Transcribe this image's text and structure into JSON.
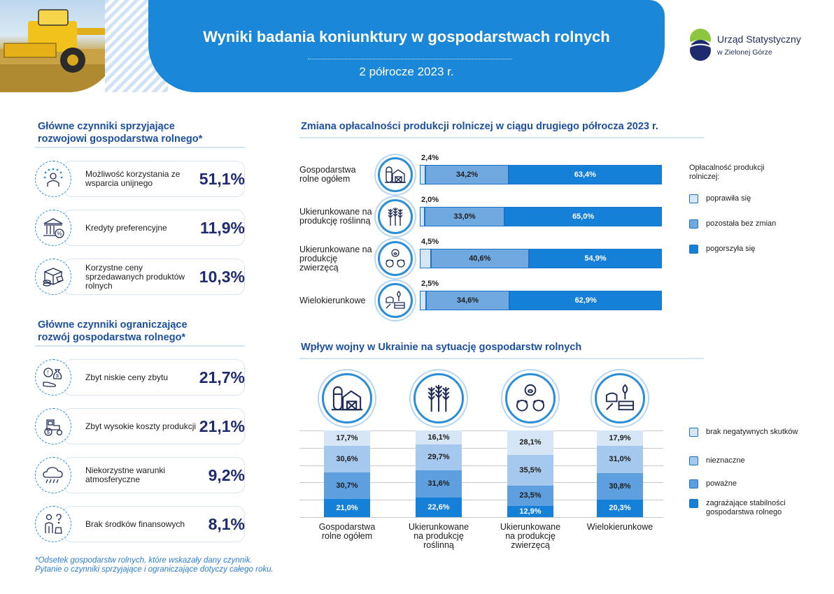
{
  "header": {
    "title": "Wyniki badania koniunktury w gospodarstwach rolnych",
    "subtitle": "2 półrocze 2023 r."
  },
  "logo": {
    "line1": "Urząd Statystyczny",
    "line2": "w Zielonej Górze"
  },
  "colors": {
    "header_blue": "#1b87d8",
    "title_blue": "#1b4f9f",
    "percent_navy": "#1e2b6f",
    "c1_improved": "#d6e6f6",
    "c1_unchanged": "#6fa9e0",
    "c1_worse": "#1580d8",
    "c2_none": "#d6e6f6",
    "c2_minor": "#a4c8ee",
    "c2_serious": "#5e9fe0",
    "c2_threat": "#1580d8"
  },
  "favorable": {
    "title_line1": "Główne czynniki sprzyjające",
    "title_line2": "rozwojowi gospodarstwa rolnego*",
    "items": [
      {
        "label": "Możliwość korzystania ze wsparcia unijnego",
        "value": "51,1%",
        "icon": "eu-stars-farmer-icon"
      },
      {
        "label": "Kredyty preferencyjne",
        "value": "11,9%",
        "icon": "bank-percent-icon"
      },
      {
        "label": "Korzystne ceny sprzedawanych produktów rolnych",
        "value": "10,3%",
        "icon": "box-coins-price-tag-icon"
      }
    ]
  },
  "limiting": {
    "title_line1": "Główne czynniki ograniczające",
    "title_line2": "rozwój gospodarstwa rolnego*",
    "items": [
      {
        "label": "Zbyt niskie ceny zbytu",
        "value": "21,7%",
        "icon": "hand-money-bag-icon"
      },
      {
        "label": "Zbyt wysokie koszty produkcji",
        "value": "21,1%",
        "icon": "tractor-dollar-icon"
      },
      {
        "label": "Niekorzystne warunki atmosferyczne",
        "value": "9,2%",
        "icon": "storm-cloud-icon"
      },
      {
        "label": "Brak środków finansowych",
        "value": "8,1%",
        "icon": "person-question-money-icon"
      }
    ]
  },
  "chart1": {
    "title": "Zmiana opłacalności produkcji rolniczej w ciągu drugiego półrocza 2023 r.",
    "legend_title": "Opłacalność produkcji rolniczej:"
  },
  "chart2": {
    "title": "Wpływ wojny w Ukrainie na sytuację gospodarstw rolnych"
  },
  "chart_data": [
    {
      "type": "bar",
      "orientation": "horizontal",
      "stacked": true,
      "title": "Zmiana opłacalności produkcji rolniczej w ciągu drugiego półrocza 2023 r.",
      "categories": [
        "Gospodarstwa rolne ogółem",
        "Ukierunkowane na produkcję roślinną",
        "Ukierunkowane na produkcję zwierzęcą",
        "Wielokierunkowe"
      ],
      "series": [
        {
          "name": "poprawiła się",
          "values": [
            2.4,
            2.0,
            4.5,
            2.5
          ],
          "labels": [
            "2,4%",
            "2,0%",
            "4,5%",
            "2,5%"
          ]
        },
        {
          "name": "pozostała bez zmian",
          "values": [
            34.2,
            33.0,
            40.6,
            34.6
          ],
          "labels": [
            "34,2%",
            "33,0%",
            "40,6%",
            "34,6%"
          ]
        },
        {
          "name": "pogorszyła się",
          "values": [
            63.4,
            65.0,
            54.9,
            62.9
          ],
          "labels": [
            "63,4%",
            "65,0%",
            "54,9%",
            "62,9%"
          ]
        }
      ],
      "xlim": [
        0,
        100
      ],
      "legend": "right"
    },
    {
      "type": "bar",
      "orientation": "vertical",
      "stacked": true,
      "title": "Wpływ wojny w Ukrainie na sytuację gospodarstw rolnych",
      "categories": [
        "Gospodarstwa rolne ogółem",
        "Ukierunkowane na produkcję roślinną",
        "Ukierunkowane na produkcję zwierzęcą",
        "Wielokierunkowe"
      ],
      "series": [
        {
          "name": "zagrażające stabilności gospodarstwa rolnego",
          "values": [
            21.0,
            22.6,
            12.9,
            20.3
          ],
          "labels": [
            "21,0%",
            "22,6%",
            "12,9%",
            "20,3%"
          ]
        },
        {
          "name": "poważne",
          "values": [
            30.7,
            31.6,
            23.5,
            30.8
          ],
          "labels": [
            "30,7%",
            "31,6%",
            "23,5%",
            "30,8%"
          ]
        },
        {
          "name": "nieznaczne",
          "values": [
            30.6,
            29.7,
            35.5,
            31.0
          ],
          "labels": [
            "30,6%",
            "29,7%",
            "35,5%",
            "31,0%"
          ]
        },
        {
          "name": "brak negatywnych skutków",
          "values": [
            17.7,
            16.1,
            28.1,
            17.9
          ],
          "labels": [
            "17,7%",
            "16,1%",
            "28,1%",
            "17,9%"
          ]
        }
      ],
      "ylim": [
        0,
        100
      ],
      "grid": true,
      "legend": "right"
    }
  ],
  "footnote": {
    "line1": "*Odsetek gospodarstw rolnych, które wskazały dany czynnik.",
    "line2": "Pytanie o czynniki sprzyjające i ograniczające dotyczy całego roku."
  }
}
